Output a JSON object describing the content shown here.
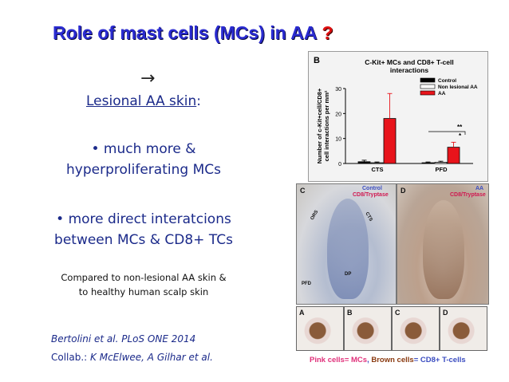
{
  "slide": {
    "title": "Role of mast cells (MCs) in AA",
    "title_mark": "?",
    "arrow": "→",
    "heading": "Lesional AA skin",
    "heading_suffix": ":",
    "bullet1_line1": "• much more &",
    "bullet1_line2": "hyperproliferating MCs",
    "bullet2_line1": "• more direct interatcions",
    "bullet2_line2": "between MCs & CD8+ TCs",
    "compare_line1": "Compared to non-lesional AA skin &",
    "compare_line2": "to healthy human scalp skin",
    "citation": "Bertolini et  al.  PLoS ONE 2014",
    "collab_prefix": "Collab.: ",
    "collab_names": "K McElwee, A Gilhar et al."
  },
  "figure": {
    "panel_c": "C",
    "panel_d": "D",
    "c_legend_control": "Control",
    "c_legend_stain": "CD8/Tryptase",
    "d_legend_aa": "AA",
    "d_legend_stain": "CD8/Tryptase",
    "strip_labels": [
      "A",
      "B",
      "C",
      "D"
    ],
    "region_cts": "CTS",
    "region_ors": "ORS",
    "region_dp": "DP",
    "region_pfd": "PFD",
    "caption_pink": "Pink cells= MCs",
    "caption_sep": ", ",
    "caption_brown": "Brown cells",
    "caption_rest": "= CD8+ T-cells"
  },
  "chart_data": {
    "type": "bar",
    "panel_label": "B",
    "title_line1": "C-Kit+ MCs and CD8+ T-cell",
    "title_line2": "interactions",
    "ylabel_line1": "Number of c-Kit+cell/CD8+",
    "ylabel_line2": "cell interactions per mm²",
    "categories": [
      "CTS",
      "PFD"
    ],
    "yticks": [
      0,
      10,
      20,
      30
    ],
    "ylim": [
      0,
      30
    ],
    "series": [
      {
        "name": "Control",
        "color": "#000000",
        "values": [
          0.7,
          0.3
        ],
        "errors": [
          0.6,
          0.3
        ]
      },
      {
        "name": "Non lesional AA",
        "color": "#ffffff",
        "values": [
          0.3,
          0.5
        ],
        "errors": [
          0.3,
          0.4
        ]
      },
      {
        "name": "AA",
        "color": "#e8141b",
        "values": [
          18,
          6.5
        ],
        "errors": [
          10,
          2
        ]
      }
    ],
    "significance": [
      "**",
      "*"
    ],
    "legend_position": "top-right",
    "grid": false
  }
}
